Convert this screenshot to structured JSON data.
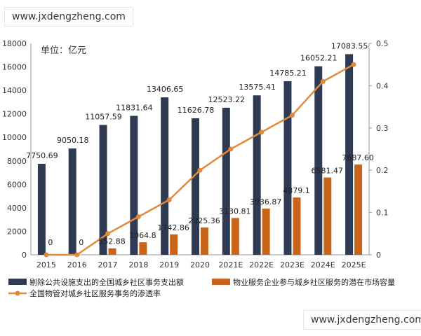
{
  "watermark": {
    "top": "www.jxdengzheng.com",
    "bottom": "www.jxdengzheng.com"
  },
  "chart_data": {
    "type": "bar",
    "unit_label": "单位：亿元",
    "categories": [
      "2015",
      "2016",
      "2017",
      "2018",
      "2019",
      "2020",
      "2021E",
      "2022E",
      "2023E",
      "2024E",
      "2025E"
    ],
    "series": [
      {
        "name": "剔除公共设施支出的全国城乡社区事务支出额",
        "axis": "left",
        "kind": "bar",
        "color": "#2f3b52",
        "values": [
          7750.69,
          9050.18,
          11057.59,
          11831.64,
          13406.65,
          11626.78,
          12523.22,
          13575.41,
          14785.21,
          16052.21,
          17083.55
        ],
        "labels": [
          "7750.69",
          "9050.18",
          "11057.59",
          "11831.64",
          "13406.65",
          "11626.78",
          "12523.22",
          "13575.41",
          "14785.21",
          "16052.21",
          "17083.55"
        ]
      },
      {
        "name": "物业服务企业参与城乡社区服务的潜在市场容量",
        "axis": "left",
        "kind": "bar",
        "color": "#c8651b",
        "values": [
          0,
          0,
          552.88,
          1064.8,
          1742.86,
          2325.36,
          3130.81,
          3936.87,
          4879.1,
          6581.47,
          7687.6
        ],
        "labels": [
          "0",
          "0",
          "552.88",
          "1064.8",
          "1742.86",
          "2325.36",
          "3130.81",
          "3936.87",
          "4879.1",
          "6581.47",
          "7687.60"
        ]
      },
      {
        "name": "全国物管对城乡社区服务事务的渗透率",
        "axis": "right",
        "kind": "line",
        "color": "#e08a3c",
        "values": [
          0,
          0,
          0.05,
          0.09,
          0.13,
          0.2,
          0.25,
          0.29,
          0.33,
          0.41,
          0.45
        ]
      }
    ],
    "ylim": [
      0,
      18000
    ],
    "yticks": [
      "0",
      "2000",
      "4000",
      "6000",
      "8000",
      "10000",
      "12000",
      "14000",
      "16000",
      "18000"
    ],
    "y2lim": [
      0,
      0.5
    ],
    "y2ticks": [
      "0",
      "0.1",
      "0.2",
      "0.3",
      "0.4",
      "0.5"
    ],
    "legend": "bottom",
    "grid": false
  }
}
